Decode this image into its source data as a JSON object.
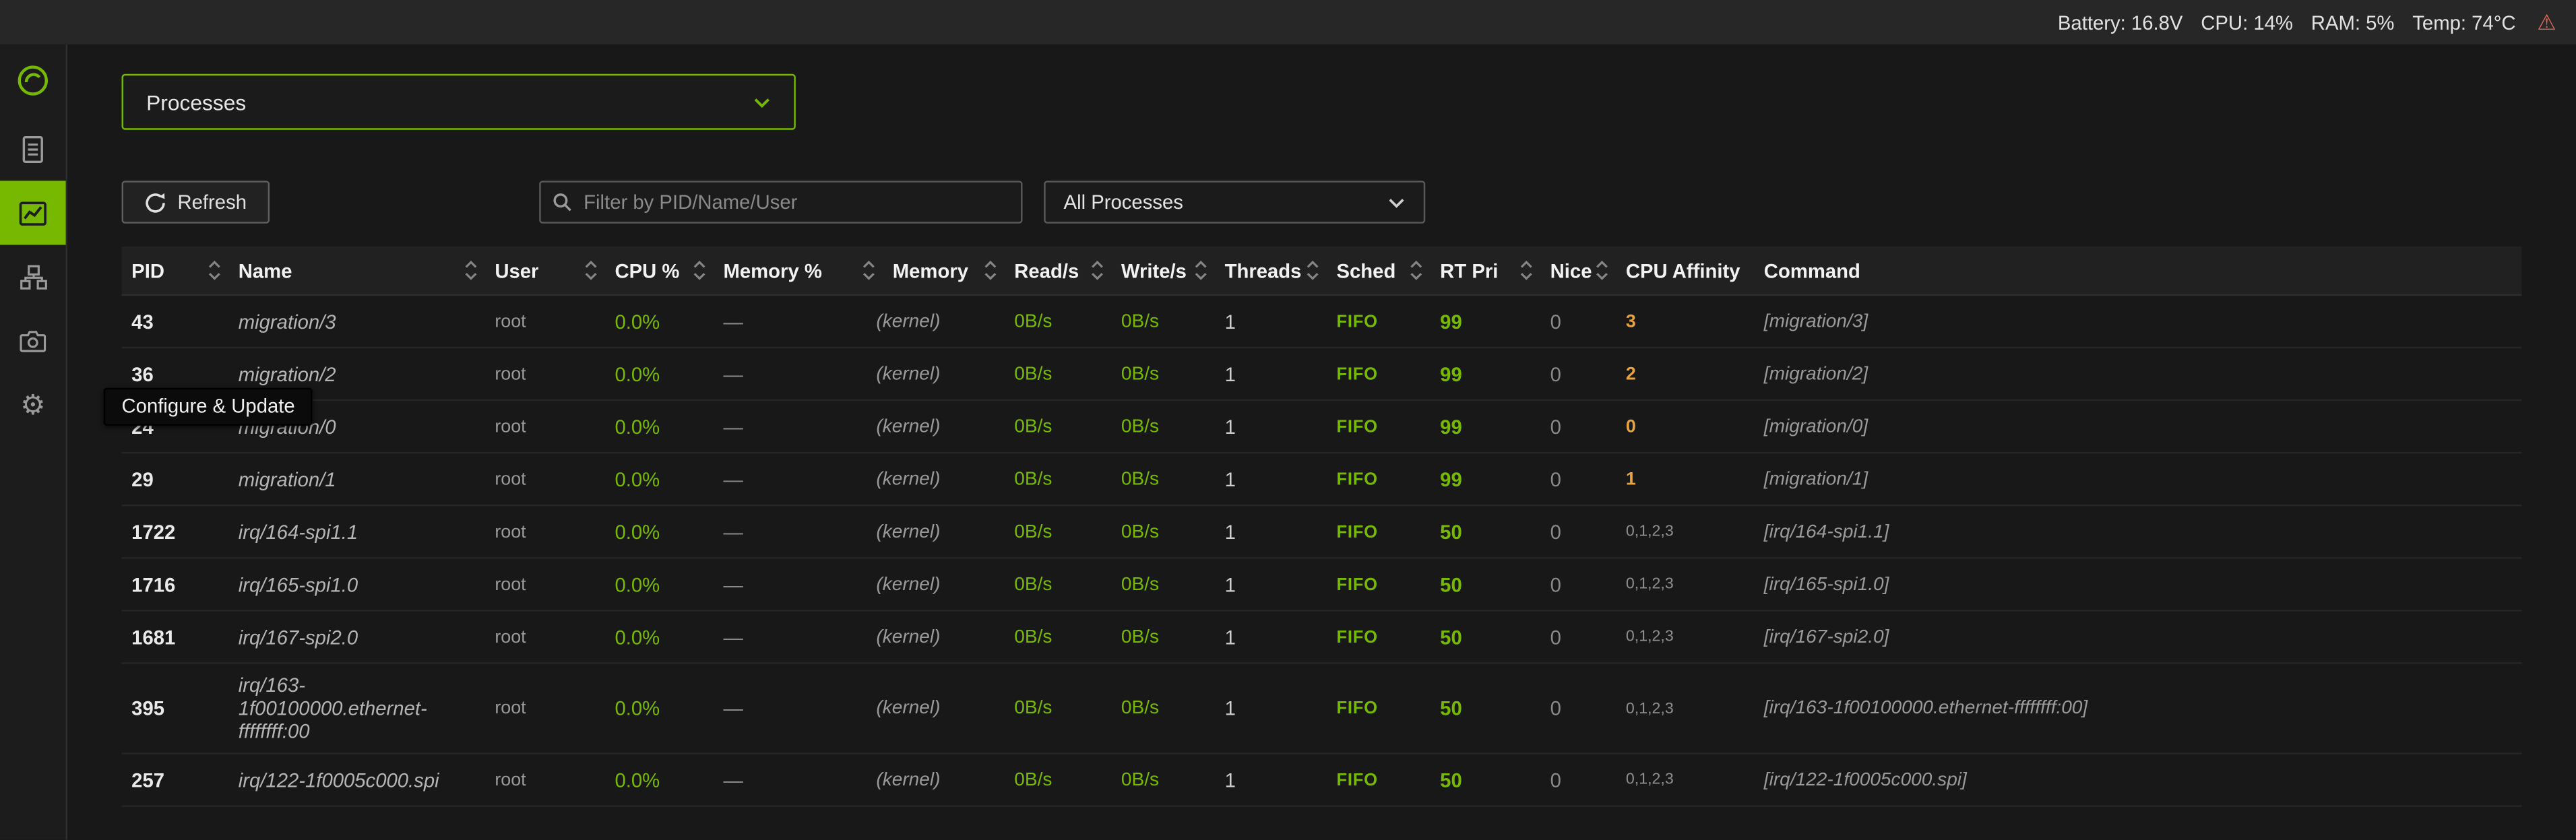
{
  "colors": {
    "accent_green": "#76b900",
    "warn_orange": "#e8a33c",
    "alert_red": "#e0695a"
  },
  "icons": {
    "warning_glyph": "⚠",
    "gear_glyph": "⚙"
  },
  "topbar": {
    "stats": [
      "Battery: 16.8V",
      "CPU: 14%",
      "RAM: 5%",
      "Temp: 74°C"
    ]
  },
  "sidebar": {
    "tooltip": "Configure & Update"
  },
  "main": {
    "page_selector": {
      "value": "Processes"
    },
    "toolbar": {
      "refresh_label": "Refresh",
      "filter_placeholder": "Filter by PID/Name/User",
      "scope_value": "All Processes"
    }
  },
  "table": {
    "columns": [
      {
        "label": "PID",
        "sortable": true
      },
      {
        "label": "Name",
        "sortable": true
      },
      {
        "label": "User",
        "sortable": true
      },
      {
        "label": "CPU %",
        "sortable": true
      },
      {
        "label": "Memory %",
        "sortable": true
      },
      {
        "label": "Memory",
        "sortable": true
      },
      {
        "label": "Read/s",
        "sortable": true
      },
      {
        "label": "Write/s",
        "sortable": true
      },
      {
        "label": "Threads",
        "sortable": true
      },
      {
        "label": "Sched",
        "sortable": true
      },
      {
        "label": "RT Pri",
        "sortable": true
      },
      {
        "label": "Nice",
        "sortable": true
      },
      {
        "label": "CPU Affinity",
        "sortable": false
      },
      {
        "label": "Command",
        "sortable": false
      }
    ],
    "rows": [
      {
        "pid": "43",
        "name": "migration/3",
        "user": "root",
        "cpu": "0.0%",
        "memory_pct": "—",
        "memory": "(kernel)",
        "read": "0B/s",
        "write": "0B/s",
        "threads": "1",
        "sched": "FIFO",
        "rt_pri": "99",
        "nice": "0",
        "affinity": "3",
        "command": "[migration/3]"
      },
      {
        "pid": "36",
        "name": "migration/2",
        "user": "root",
        "cpu": "0.0%",
        "memory_pct": "—",
        "memory": "(kernel)",
        "read": "0B/s",
        "write": "0B/s",
        "threads": "1",
        "sched": "FIFO",
        "rt_pri": "99",
        "nice": "0",
        "affinity": "2",
        "command": "[migration/2]"
      },
      {
        "pid": "24",
        "name": "migration/0",
        "user": "root",
        "cpu": "0.0%",
        "memory_pct": "—",
        "memory": "(kernel)",
        "read": "0B/s",
        "write": "0B/s",
        "threads": "1",
        "sched": "FIFO",
        "rt_pri": "99",
        "nice": "0",
        "affinity": "0",
        "command": "[migration/0]"
      },
      {
        "pid": "29",
        "name": "migration/1",
        "user": "root",
        "cpu": "0.0%",
        "memory_pct": "—",
        "memory": "(kernel)",
        "read": "0B/s",
        "write": "0B/s",
        "threads": "1",
        "sched": "FIFO",
        "rt_pri": "99",
        "nice": "0",
        "affinity": "1",
        "command": "[migration/1]"
      },
      {
        "pid": "1722",
        "name": "irq/164-spi1.1",
        "user": "root",
        "cpu": "0.0%",
        "memory_pct": "—",
        "memory": "(kernel)",
        "read": "0B/s",
        "write": "0B/s",
        "threads": "1",
        "sched": "FIFO",
        "rt_pri": "50",
        "nice": "0",
        "affinity": "0,1,2,3",
        "command": "[irq/164-spi1.1]"
      },
      {
        "pid": "1716",
        "name": "irq/165-spi1.0",
        "user": "root",
        "cpu": "0.0%",
        "memory_pct": "—",
        "memory": "(kernel)",
        "read": "0B/s",
        "write": "0B/s",
        "threads": "1",
        "sched": "FIFO",
        "rt_pri": "50",
        "nice": "0",
        "affinity": "0,1,2,3",
        "command": "[irq/165-spi1.0]"
      },
      {
        "pid": "1681",
        "name": "irq/167-spi2.0",
        "user": "root",
        "cpu": "0.0%",
        "memory_pct": "—",
        "memory": "(kernel)",
        "read": "0B/s",
        "write": "0B/s",
        "threads": "1",
        "sched": "FIFO",
        "rt_pri": "50",
        "nice": "0",
        "affinity": "0,1,2,3",
        "command": "[irq/167-spi2.0]"
      },
      {
        "pid": "395",
        "name": "irq/163-1f00100000.ethernet-ffffffff:00",
        "user": "root",
        "cpu": "0.0%",
        "memory_pct": "—",
        "memory": "(kernel)",
        "read": "0B/s",
        "write": "0B/s",
        "threads": "1",
        "sched": "FIFO",
        "rt_pri": "50",
        "nice": "0",
        "affinity": "0,1,2,3",
        "command": "[irq/163-1f00100000.ethernet-ffffffff:00]"
      },
      {
        "pid": "257",
        "name": "irq/122-1f0005c000.spi",
        "user": "root",
        "cpu": "0.0%",
        "memory_pct": "—",
        "memory": "(kernel)",
        "read": "0B/s",
        "write": "0B/s",
        "threads": "1",
        "sched": "FIFO",
        "rt_pri": "50",
        "nice": "0",
        "affinity": "0,1,2,3",
        "command": "[irq/122-1f0005c000.spi]"
      }
    ]
  }
}
